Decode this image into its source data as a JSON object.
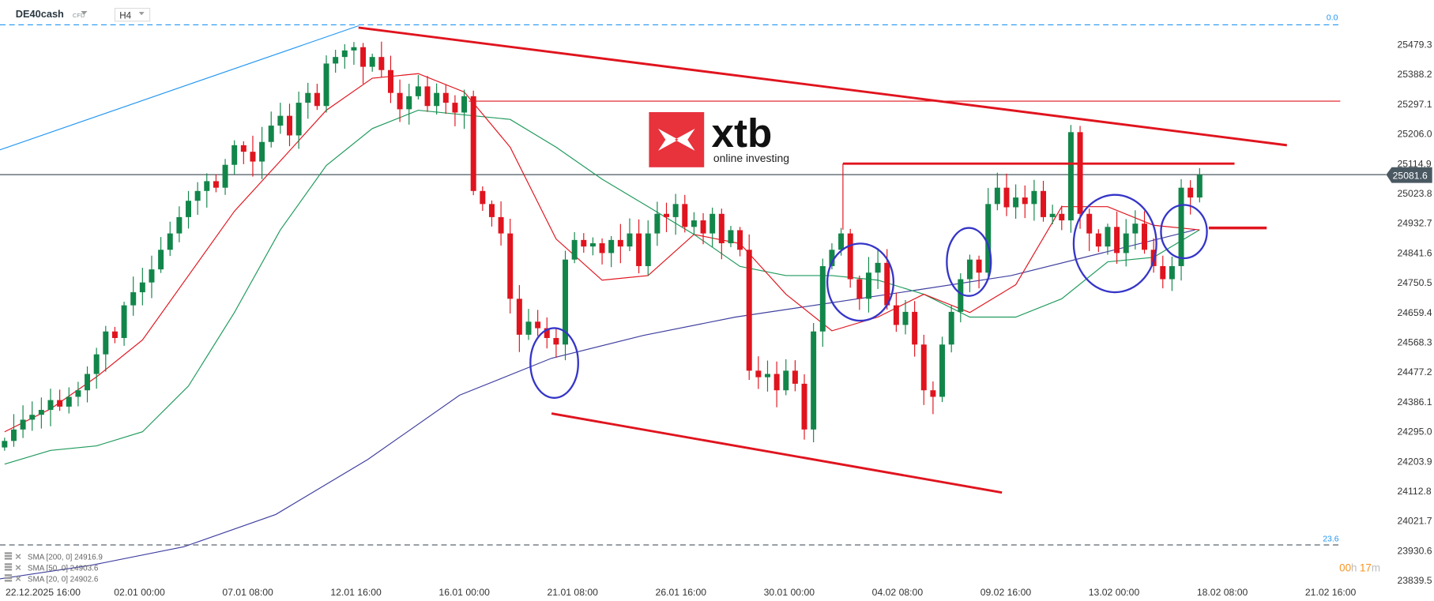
{
  "header": {
    "symbol": "DE40cash",
    "instrument_type": "CFD",
    "timeframe": "H4"
  },
  "logo": {
    "brand": "xtb",
    "tagline": "online investing"
  },
  "fib": {
    "level_top": "0.0",
    "level_bottom": "23.6"
  },
  "countdown": {
    "hours": "00",
    "h_unit": "h",
    "minutes": "17",
    "m_unit": "m"
  },
  "legend": [
    {
      "label": "SMA [200, 0] 24916.9"
    },
    {
      "label": "SMA [50, 0] 24903.6"
    },
    {
      "label": "SMA [20, 0] 24902.6"
    }
  ],
  "colors": {
    "up": "#12864a",
    "down": "#e0141e",
    "sma20": "#e0141e",
    "sma50": "#1f9a5c",
    "sma200": "#3f3fa0",
    "fib": "#2196f3",
    "price_tag": "#4a5862",
    "countdown": "#f7931e"
  },
  "chart_data": {
    "type": "candlestick",
    "current_price": "25081.6",
    "y_ticks": [
      "25479.3",
      "25388.2",
      "25297.1",
      "25206.0",
      "25114.9",
      "25023.8",
      "24932.7",
      "24841.6",
      "24750.5",
      "24659.4",
      "24568.3",
      "24477.2",
      "24386.1",
      "24295.0",
      "24203.9",
      "24112.8",
      "24021.7",
      "23930.6",
      "23839.5"
    ],
    "x_ticks": [
      "22.12.2025  16:00",
      "02.01  00:00",
      "07.01  08:00",
      "12.01  16:00",
      "16.01  00:00",
      "21.01  08:00",
      "26.01  16:00",
      "30.01  00:00",
      "04.02  08:00",
      "09.02  16:00",
      "13.02  00:00",
      "18.02  08:00",
      "21.02  16:00"
    ],
    "close": [
      24265,
      24300,
      24330,
      24345,
      24360,
      24390,
      24370,
      24400,
      24420,
      24470,
      24530,
      24600,
      24580,
      24680,
      24720,
      24750,
      24790,
      24850,
      24900,
      24950,
      25000,
      25030,
      25060,
      25040,
      25110,
      25170,
      25150,
      25120,
      25180,
      25230,
      25260,
      25200,
      25300,
      25330,
      25290,
      25420,
      25440,
      25460,
      25470,
      25410,
      25440,
      25400,
      25330,
      25280,
      25320,
      25350,
      25290,
      25330,
      25300,
      25270,
      25320,
      25030,
      24990,
      24950,
      24900,
      24700,
      24590,
      24630,
      24610,
      24580,
      24560,
      24820,
      24880,
      24860,
      24870,
      24840,
      24880,
      24860,
      24900,
      24800,
      24900,
      24960,
      24950,
      24990,
      24920,
      24940,
      24900,
      24960,
      24870,
      24910,
      24850,
      24480,
      24460,
      24470,
      24420,
      24480,
      24440,
      24300,
      24600,
      24800,
      24850,
      24900,
      24760,
      24700,
      24780,
      24810,
      24680,
      24620,
      24660,
      24560,
      24420,
      24400,
      24560,
      24660,
      24760,
      24820,
      24780,
      24990,
      25040,
      24980,
      25010,
      24990,
      25030,
      24950,
      24960,
      24940,
      25210,
      24960,
      24900,
      24860,
      24920,
      24840,
      24900,
      24930,
      24850,
      24800,
      24760,
      24800,
      25040,
      25010,
      25080
    ],
    "sma20": [
      24293,
      24363,
      24461,
      24574,
      24771,
      24968,
      25122,
      25277,
      25375,
      25389,
      25333,
      25164,
      24883,
      24757,
      24771,
      24897,
      24869,
      24714,
      24602,
      24644,
      24714,
      24658,
      24743,
      24982,
      24982,
      24925,
      24911
    ],
    "sma50": [
      24194,
      24236,
      24250,
      24293,
      24433,
      24658,
      24911,
      25108,
      25221,
      25277,
      25263,
      25249,
      25164,
      25066,
      24982,
      24897,
      24799,
      24771,
      24771,
      24757,
      24714,
      24644,
      24644,
      24700,
      24813,
      24827,
      24911
    ],
    "sma200": [
      23843,
      23885,
      23941,
      24040,
      24208,
      24405,
      24518,
      24588,
      24644,
      24686,
      24728,
      24771,
      24841,
      24911
    ]
  }
}
